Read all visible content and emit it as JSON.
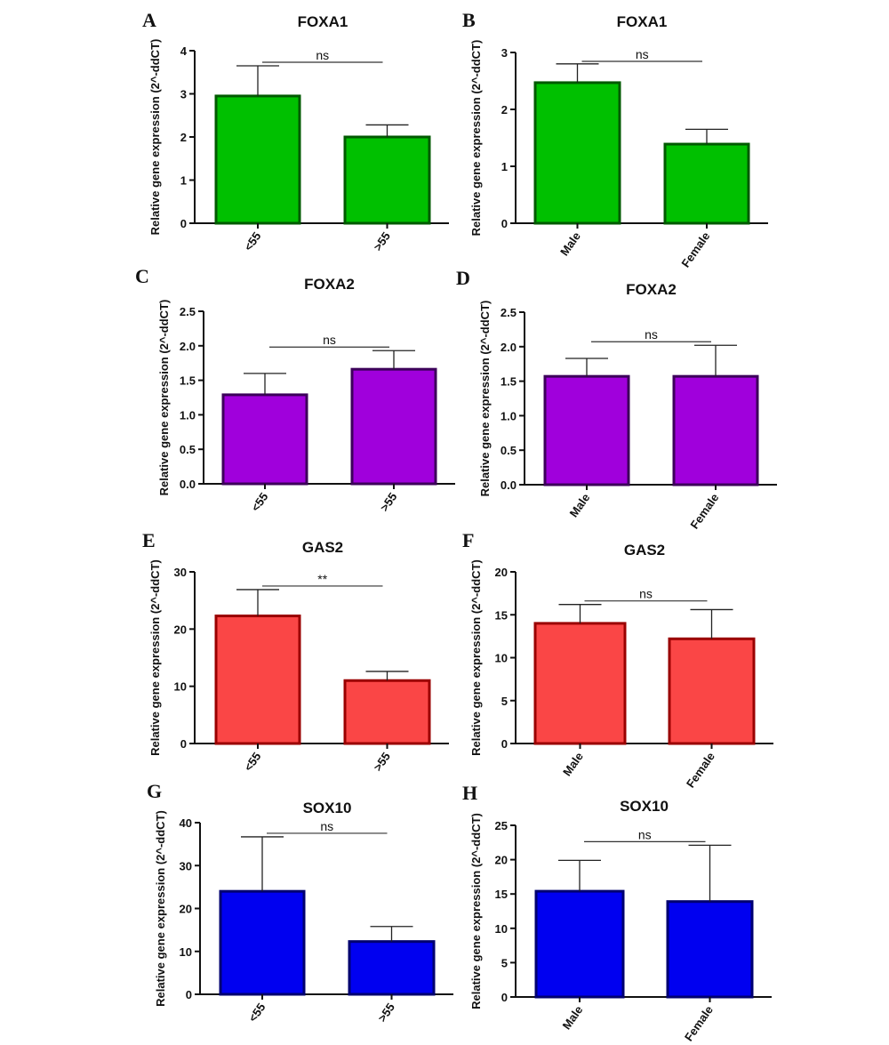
{
  "chart_data": [
    {
      "panel": "A",
      "type": "bar",
      "title": "FOXA1",
      "ylabel": "Relative gene expression (2^-ddCT)",
      "categories": [
        "<55",
        ">55"
      ],
      "values": [
        2.95,
        2.0
      ],
      "errors": [
        0.7,
        0.28
      ],
      "ylim": [
        0,
        4
      ],
      "yticks": [
        "0",
        "1",
        "2",
        "3",
        "4"
      ],
      "ytick_values": [
        0,
        1,
        2,
        3,
        4
      ],
      "significance": "ns",
      "color": "#00c000",
      "edge_color": "#005a00"
    },
    {
      "panel": "B",
      "type": "bar",
      "title": "FOXA1",
      "ylabel": "Relative gene expression (2^-ddCT)",
      "categories": [
        "Male",
        "Female"
      ],
      "values": [
        2.47,
        1.39
      ],
      "errors": [
        0.33,
        0.26
      ],
      "ylim": [
        0,
        3
      ],
      "yticks": [
        "0",
        "1",
        "2",
        "3"
      ],
      "ytick_values": [
        0,
        1,
        2,
        3
      ],
      "significance": "ns",
      "color": "#00c000",
      "edge_color": "#005a00"
    },
    {
      "panel": "C",
      "type": "bar",
      "title": "FOXA2",
      "ylabel": "Relative gene expression (2^-ddCT)",
      "categories": [
        "<55",
        ">55"
      ],
      "values": [
        1.29,
        1.66
      ],
      "errors": [
        0.31,
        0.27
      ],
      "ylim": [
        0,
        2.5
      ],
      "yticks": [
        "0.0",
        "0.5",
        "1.0",
        "1.5",
        "2.0",
        "2.5"
      ],
      "ytick_values": [
        0,
        0.5,
        1.0,
        1.5,
        2.0,
        2.5
      ],
      "significance": "ns",
      "color": "#a000dc",
      "edge_color": "#3c005a"
    },
    {
      "panel": "D",
      "type": "bar",
      "title": "FOXA2",
      "ylabel": "Relative gene expression (2^-ddCT)",
      "categories": [
        "Male",
        "Female"
      ],
      "values": [
        1.57,
        1.57
      ],
      "errors": [
        0.26,
        0.45
      ],
      "ylim": [
        0,
        2.5
      ],
      "yticks": [
        "0.0",
        "0.5",
        "1.0",
        "1.5",
        "2.0",
        "2.5"
      ],
      "ytick_values": [
        0,
        0.5,
        1.0,
        1.5,
        2.0,
        2.5
      ],
      "significance": "ns",
      "color": "#a000dc",
      "edge_color": "#3c005a"
    },
    {
      "panel": "E",
      "type": "bar",
      "title": "GAS2",
      "ylabel": "Relative gene expression (2^-ddCT)",
      "categories": [
        "<55",
        ">55"
      ],
      "values": [
        22.3,
        11.0
      ],
      "errors": [
        4.6,
        1.6
      ],
      "ylim": [
        0,
        30
      ],
      "yticks": [
        "0",
        "10",
        "20",
        "30"
      ],
      "ytick_values": [
        0,
        10,
        20,
        30
      ],
      "significance": "**",
      "color": "#fa4646",
      "edge_color": "#9a0000"
    },
    {
      "panel": "F",
      "type": "bar",
      "title": "GAS2",
      "ylabel": "Relative gene expression (2^-ddCT)",
      "categories": [
        "Male",
        "Female"
      ],
      "values": [
        14.0,
        12.2
      ],
      "errors": [
        2.2,
        3.4
      ],
      "ylim": [
        0,
        20
      ],
      "yticks": [
        "0",
        "5",
        "10",
        "15",
        "20"
      ],
      "ytick_values": [
        0,
        5,
        10,
        15,
        20
      ],
      "significance": "ns",
      "color": "#fa4646",
      "edge_color": "#9a0000"
    },
    {
      "panel": "G",
      "type": "bar",
      "title": "SOX10",
      "ylabel": "Relative gene expression (2^-ddCT)",
      "categories": [
        "<55",
        ">55"
      ],
      "values": [
        24.0,
        12.3
      ],
      "errors": [
        12.7,
        3.5
      ],
      "ylim": [
        0,
        40
      ],
      "yticks": [
        "0",
        "10",
        "20",
        "30",
        "40"
      ],
      "ytick_values": [
        0,
        10,
        20,
        30,
        40
      ],
      "significance": "ns",
      "color": "#0000f0",
      "edge_color": "#000070"
    },
    {
      "panel": "H",
      "type": "bar",
      "title": "SOX10",
      "ylabel": "Relative gene expression (2^-ddCT)",
      "categories": [
        "Male",
        "Female"
      ],
      "values": [
        15.4,
        13.9
      ],
      "errors": [
        4.5,
        8.2
      ],
      "ylim": [
        0,
        25
      ],
      "yticks": [
        "0",
        "5",
        "10",
        "15",
        "20",
        "25"
      ],
      "ytick_values": [
        0,
        5,
        10,
        15,
        20,
        25
      ],
      "significance": "ns",
      "color": "#0000f0",
      "edge_color": "#000070"
    }
  ]
}
